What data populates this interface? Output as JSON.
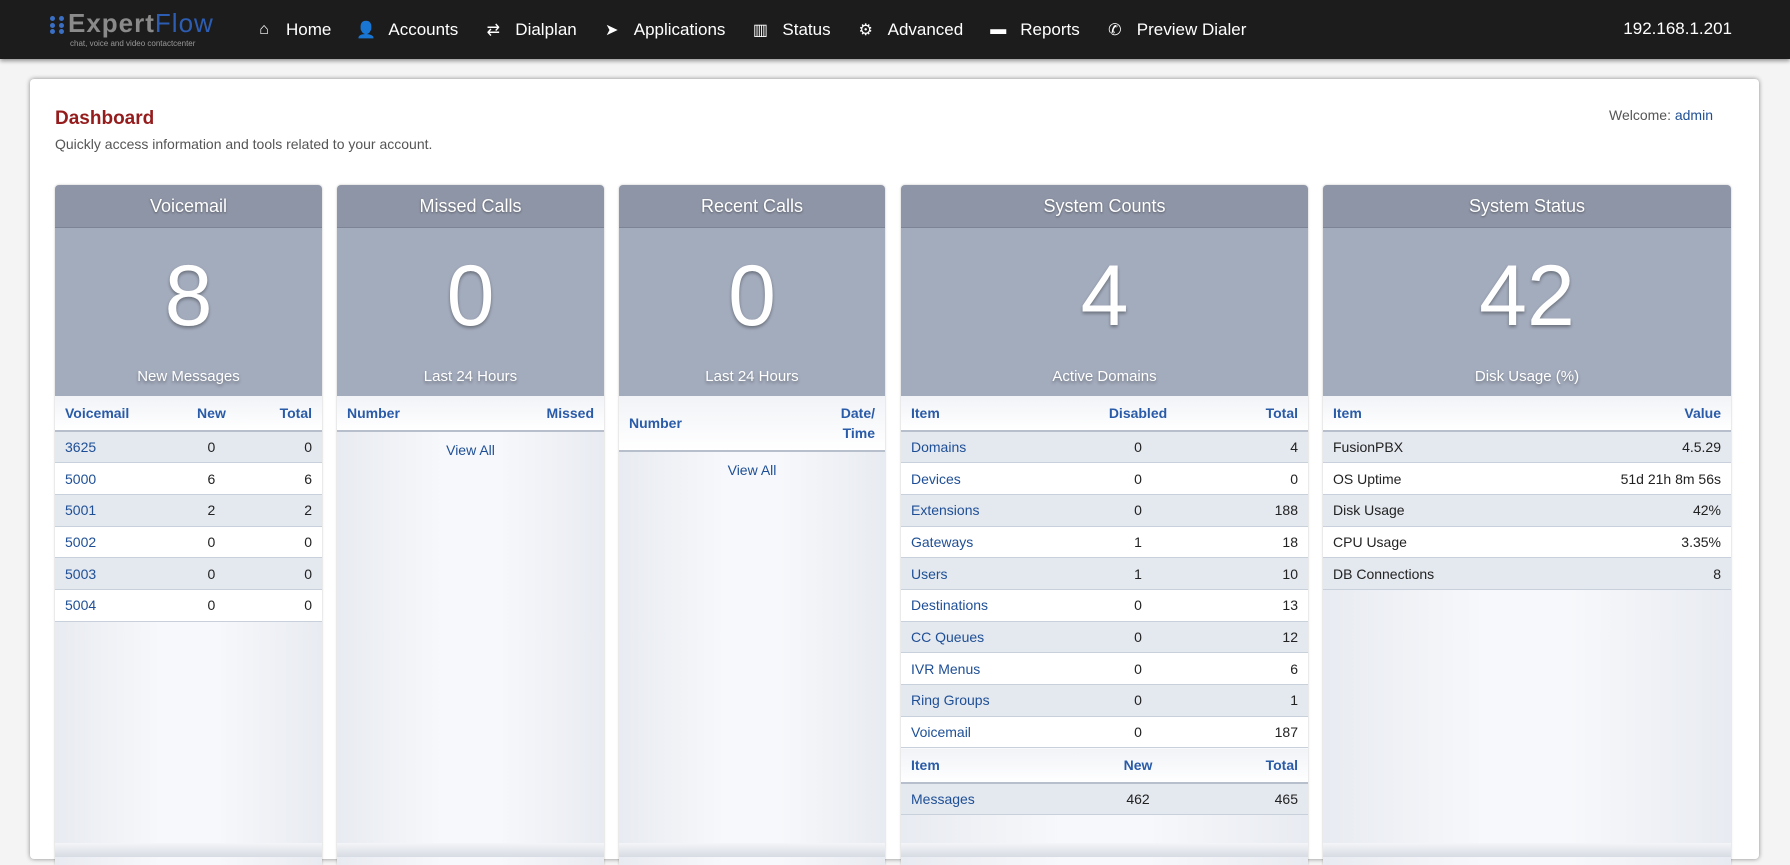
{
  "brand": {
    "logo_text_a": "Expert",
    "logo_text_b": "Flow",
    "tagline": "chat, voice and video contactcenter"
  },
  "nav": [
    {
      "label": "Home",
      "icon": "home-icon",
      "glyph": "⌂"
    },
    {
      "label": "Accounts",
      "icon": "user-icon",
      "glyph": "👤"
    },
    {
      "label": "Dialplan",
      "icon": "exchange-icon",
      "glyph": "⇄"
    },
    {
      "label": "Applications",
      "icon": "paper-plane-icon",
      "glyph": "➤"
    },
    {
      "label": "Status",
      "icon": "bar-chart-icon",
      "glyph": "▥"
    },
    {
      "label": "Advanced",
      "icon": "gear-icon",
      "glyph": "⚙"
    },
    {
      "label": "Reports",
      "icon": "report-icon",
      "glyph": "▬"
    },
    {
      "label": "Preview Dialer",
      "icon": "phone-icon",
      "glyph": "✆"
    }
  ],
  "server_ip": "192.168.1.201",
  "page": {
    "title": "Dashboard",
    "subtitle": "Quickly access information and tools related to your account.",
    "welcome_label": "Welcome:",
    "user": "admin"
  },
  "voicemail": {
    "title": "Voicemail",
    "count": "8",
    "count_label": "New Messages",
    "headers": [
      "Voicemail",
      "New",
      "Total"
    ],
    "rows": [
      [
        "3625",
        "0",
        "0"
      ],
      [
        "5000",
        "6",
        "6"
      ],
      [
        "5001",
        "2",
        "2"
      ],
      [
        "5002",
        "0",
        "0"
      ],
      [
        "5003",
        "0",
        "0"
      ],
      [
        "5004",
        "0",
        "0"
      ]
    ]
  },
  "missed": {
    "title": "Missed Calls",
    "count": "0",
    "count_label": "Last 24 Hours",
    "headers": [
      "Number",
      "Missed"
    ],
    "view_all": "View All"
  },
  "recent": {
    "title": "Recent Calls",
    "count": "0",
    "count_label": "Last 24 Hours",
    "headers": [
      "Number",
      "Date/ Time"
    ],
    "view_all": "View All"
  },
  "counts": {
    "title": "System Counts",
    "count": "4",
    "count_label": "Active Domains",
    "headers": [
      "Item",
      "Disabled",
      "Total"
    ],
    "rows": [
      [
        "Domains",
        "0",
        "4"
      ],
      [
        "Devices",
        "0",
        "0"
      ],
      [
        "Extensions",
        "0",
        "188"
      ],
      [
        "Gateways",
        "1",
        "18"
      ],
      [
        "Users",
        "1",
        "10"
      ],
      [
        "Destinations",
        "0",
        "13"
      ],
      [
        "CC Queues",
        "0",
        "12"
      ],
      [
        "IVR Menus",
        "0",
        "6"
      ],
      [
        "Ring Groups",
        "0",
        "1"
      ],
      [
        "Voicemail",
        "0",
        "187"
      ]
    ],
    "headers2": [
      "Item",
      "New",
      "Total"
    ],
    "rows2": [
      [
        "Messages",
        "462",
        "465"
      ]
    ]
  },
  "status": {
    "title": "System Status",
    "count": "42",
    "count_label": "Disk Usage (%)",
    "headers": [
      "Item",
      "Value"
    ],
    "rows": [
      [
        "FusionPBX",
        "4.5.29"
      ],
      [
        "OS Uptime",
        "51d 21h 8m 56s"
      ],
      [
        "Disk Usage",
        "42%"
      ],
      [
        "CPU Usage",
        "3.35%"
      ],
      [
        "DB Connections",
        "8"
      ]
    ]
  }
}
